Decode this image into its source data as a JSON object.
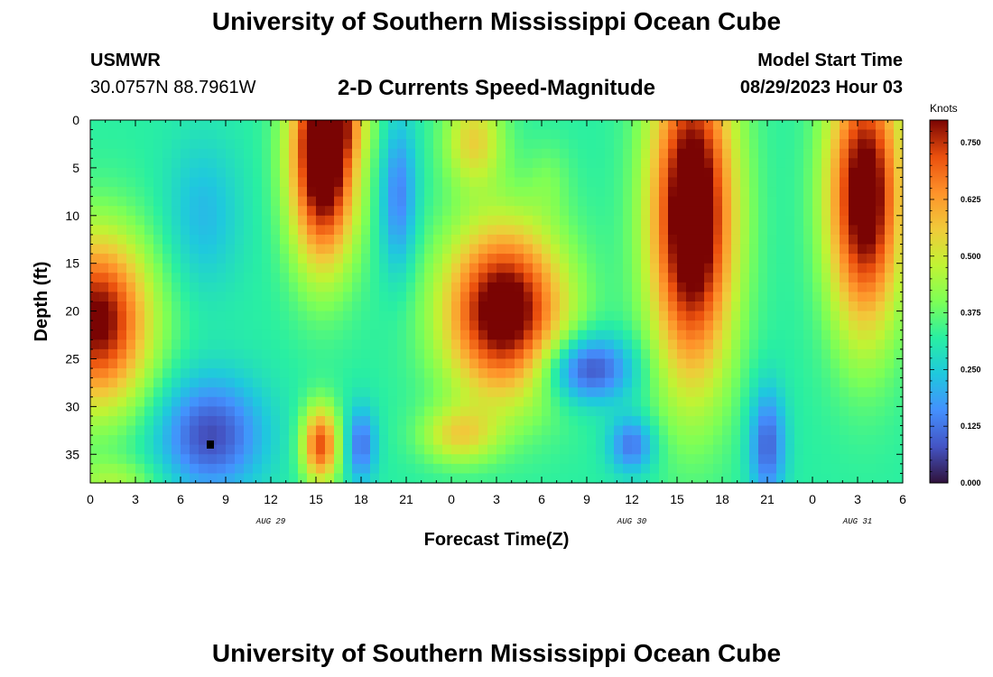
{
  "header": {
    "title": "University of Southern Mississippi Ocean Cube",
    "station": "USMWR",
    "coordinates": "30.0757N  88.7961W",
    "chart_title": "2-D Currents Speed-Magnitude",
    "model_start_label": "Model Start Time",
    "model_start_value": "08/29/2023 Hour 03"
  },
  "footer": {
    "title": "University of Southern Mississippi Ocean Cube"
  },
  "chart_data": {
    "type": "heatmap",
    "xlabel": "Forecast Time(Z)",
    "ylabel": "Depth (ft)",
    "x_range_hours": [
      0,
      54
    ],
    "y_range": [
      0,
      38
    ],
    "x_ticks": [
      {
        "h": 0,
        "label": "0"
      },
      {
        "h": 3,
        "label": "3"
      },
      {
        "h": 6,
        "label": "6"
      },
      {
        "h": 9,
        "label": "9"
      },
      {
        "h": 12,
        "label": "12"
      },
      {
        "h": 15,
        "label": "15"
      },
      {
        "h": 18,
        "label": "18"
      },
      {
        "h": 21,
        "label": "21"
      },
      {
        "h": 24,
        "label": "0"
      },
      {
        "h": 27,
        "label": "3"
      },
      {
        "h": 30,
        "label": "6"
      },
      {
        "h": 33,
        "label": "9"
      },
      {
        "h": 36,
        "label": "12"
      },
      {
        "h": 39,
        "label": "15"
      },
      {
        "h": 42,
        "label": "18"
      },
      {
        "h": 45,
        "label": "21"
      },
      {
        "h": 48,
        "label": "0"
      },
      {
        "h": 51,
        "label": "3"
      },
      {
        "h": 54,
        "label": "6"
      }
    ],
    "y_ticks": [
      0,
      5,
      10,
      15,
      20,
      25,
      30,
      35
    ],
    "date_labels": [
      {
        "h": 12,
        "label": "AUG 29"
      },
      {
        "h": 36,
        "label": "AUG 30"
      },
      {
        "h": 51,
        "label": "AUG 31"
      }
    ],
    "colorbar": {
      "units": "Knots",
      "min": 0,
      "max": 0.8,
      "ticks": [
        "0.000",
        "0.125",
        "0.250",
        "0.375",
        "0.500",
        "0.625",
        "0.750"
      ]
    },
    "speed_blobs_knots": [
      {
        "t": 0.5,
        "d": 21,
        "st": 3.5,
        "sd": 9,
        "a": 0.5
      },
      {
        "t": 15.5,
        "d": 4,
        "st": 2.2,
        "sd": 11,
        "a": 0.6
      },
      {
        "t": 15.3,
        "d": 34,
        "st": 1.2,
        "sd": 4,
        "a": 0.4
      },
      {
        "t": 27.5,
        "d": 20,
        "st": 4.0,
        "sd": 9,
        "a": 0.55
      },
      {
        "t": 24.5,
        "d": 33,
        "st": 2.5,
        "sd": 3,
        "a": 0.2
      },
      {
        "t": 16.5,
        "d": 0,
        "st": 2,
        "sd": 4,
        "a": 0.15
      },
      {
        "t": 40,
        "d": 10,
        "st": 2.8,
        "sd": 17,
        "a": 0.6
      },
      {
        "t": 51.5,
        "d": 8,
        "st": 2.5,
        "sd": 14,
        "a": 0.55
      },
      {
        "t": 25.5,
        "d": 2,
        "st": 2,
        "sd": 5,
        "a": 0.22
      },
      {
        "t": 30.5,
        "d": 6,
        "st": 1.5,
        "sd": 4,
        "a": 0.05
      },
      {
        "t": 1.5,
        "d": 38,
        "st": 3,
        "sd": 2.5,
        "a": 0.12
      }
    ],
    "slow_blobs_knots": [
      {
        "t": 8,
        "d": 33,
        "st": 3.5,
        "sd": 6,
        "a": 0.25
      },
      {
        "t": 33,
        "d": 26,
        "st": 3,
        "sd": 3.5,
        "a": 0.27
      },
      {
        "t": 36,
        "d": 34,
        "st": 1.5,
        "sd": 3,
        "a": 0.2
      },
      {
        "t": 45,
        "d": 34,
        "st": 1.2,
        "sd": 6,
        "a": 0.22
      },
      {
        "t": 18,
        "d": 34,
        "st": 1,
        "sd": 4,
        "a": 0.2
      },
      {
        "t": 20.5,
        "d": 8,
        "st": 1.2,
        "sd": 8,
        "a": 0.18
      },
      {
        "t": 7.5,
        "d": 10,
        "st": 2.5,
        "sd": 8,
        "a": 0.1
      }
    ],
    "base_speed_knots": 0.32
  }
}
